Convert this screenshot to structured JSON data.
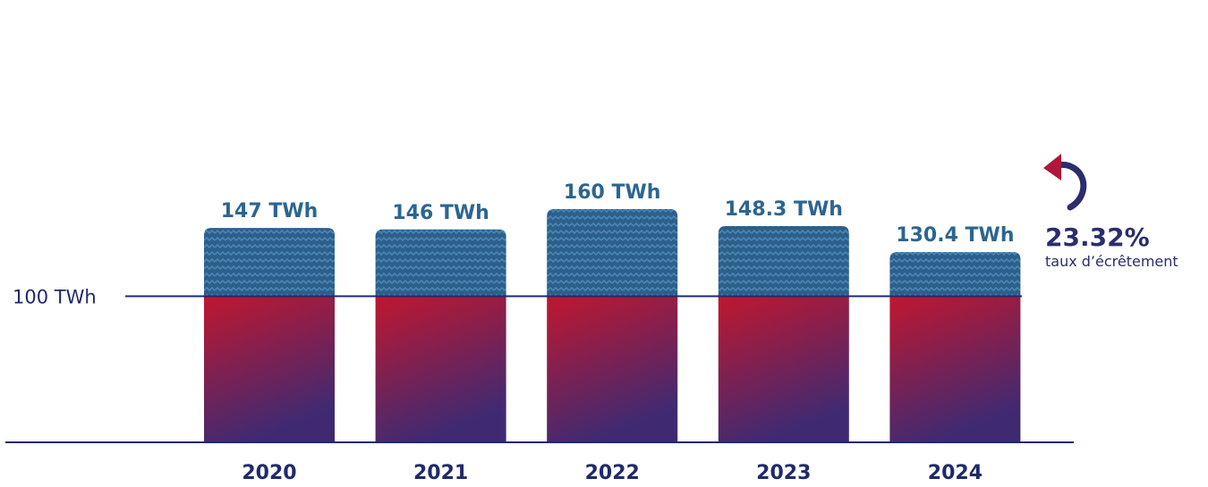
{
  "chart_data": {
    "type": "bar",
    "categories": [
      "2020",
      "2021",
      "2022",
      "2023",
      "2024"
    ],
    "values": [
      147,
      146,
      160,
      148.3,
      130.4
    ],
    "value_labels": [
      "147 TWh",
      "146 TWh",
      "160 TWh",
      "148.3 TWh",
      "130.4 TWh"
    ],
    "unit": "TWh",
    "reference_line": {
      "value": 100,
      "label": "100 TWh"
    },
    "annotation": {
      "value": "23.32%",
      "label": "taux d’écrêtement"
    },
    "ylim": [
      0,
      160
    ],
    "grid": false,
    "legend": "none",
    "colors": {
      "upper_pattern": "#2d5f8b",
      "upper_pattern_light": "#4a86b3",
      "lower_top": "#c0172f",
      "lower_bottom": "#3f2a72",
      "axis": "#1f2a6b",
      "value_label": "#2c6591",
      "annotation": "#2b2d6e",
      "arrow": "#b0173a"
    }
  }
}
